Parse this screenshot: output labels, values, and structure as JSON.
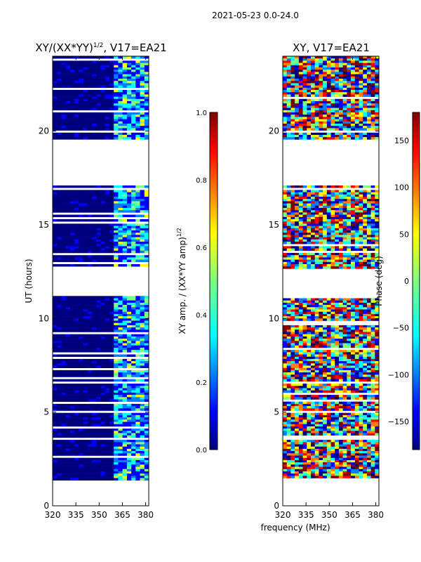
{
  "figure": {
    "suptitle": "2021-05-23 0.0-24.0",
    "shared_xlabel": "frequency (MHz)"
  },
  "chart_data": [
    {
      "type": "heatmap",
      "title": "XY/(XX*YY)",
      "title_sup": "1/2",
      "title_suffix": ", V17=EA21",
      "xlabel": "frequency (MHz)",
      "ylabel": "UT (hours)",
      "xlim": [
        320,
        382
      ],
      "ylim": [
        0,
        24
      ],
      "xticks": [
        320,
        335,
        350,
        365,
        380
      ],
      "yticks": [
        0,
        5,
        10,
        15,
        20
      ],
      "colorbar": {
        "label": "XY amp. / (XX*YY amp)",
        "label_sup": "1/2",
        "range": [
          0.0,
          1.0
        ],
        "ticks": [
          "0.0",
          "0.2",
          "0.4",
          "0.6",
          "0.8",
          "1.0"
        ],
        "colormap": "jet"
      },
      "data_coverage_hours": [
        [
          1.3,
          11.2
        ],
        [
          12.6,
          17.1
        ],
        [
          19.5,
          24.0
        ]
      ],
      "active_band_mhz": [
        360,
        381
      ]
    },
    {
      "type": "heatmap",
      "title": "XY, V17=EA21",
      "xlabel": "frequency (MHz)",
      "ylabel": "",
      "xlim": [
        320,
        382
      ],
      "ylim": [
        0,
        24
      ],
      "xticks": [
        320,
        335,
        350,
        365,
        380
      ],
      "yticks": [
        0,
        5,
        10,
        15,
        20
      ],
      "colorbar": {
        "label": "Phase (deg)",
        "range": [
          -180,
          180
        ],
        "ticks": [
          "150",
          "100",
          "50",
          "0",
          "−50",
          "−100",
          "−150"
        ],
        "tick_values": [
          150,
          100,
          50,
          0,
          -50,
          -100,
          -150
        ],
        "colormap": "jet"
      },
      "data_coverage_hours": [
        [
          1.3,
          11.2
        ],
        [
          12.6,
          17.1
        ],
        [
          19.5,
          24.0
        ]
      ]
    }
  ],
  "colors": {
    "jet": [
      "#00007f",
      "#0000ff",
      "#007fff",
      "#00ffff",
      "#7fff7f",
      "#ffff00",
      "#ff7f00",
      "#ff0000",
      "#7f0000"
    ]
  }
}
